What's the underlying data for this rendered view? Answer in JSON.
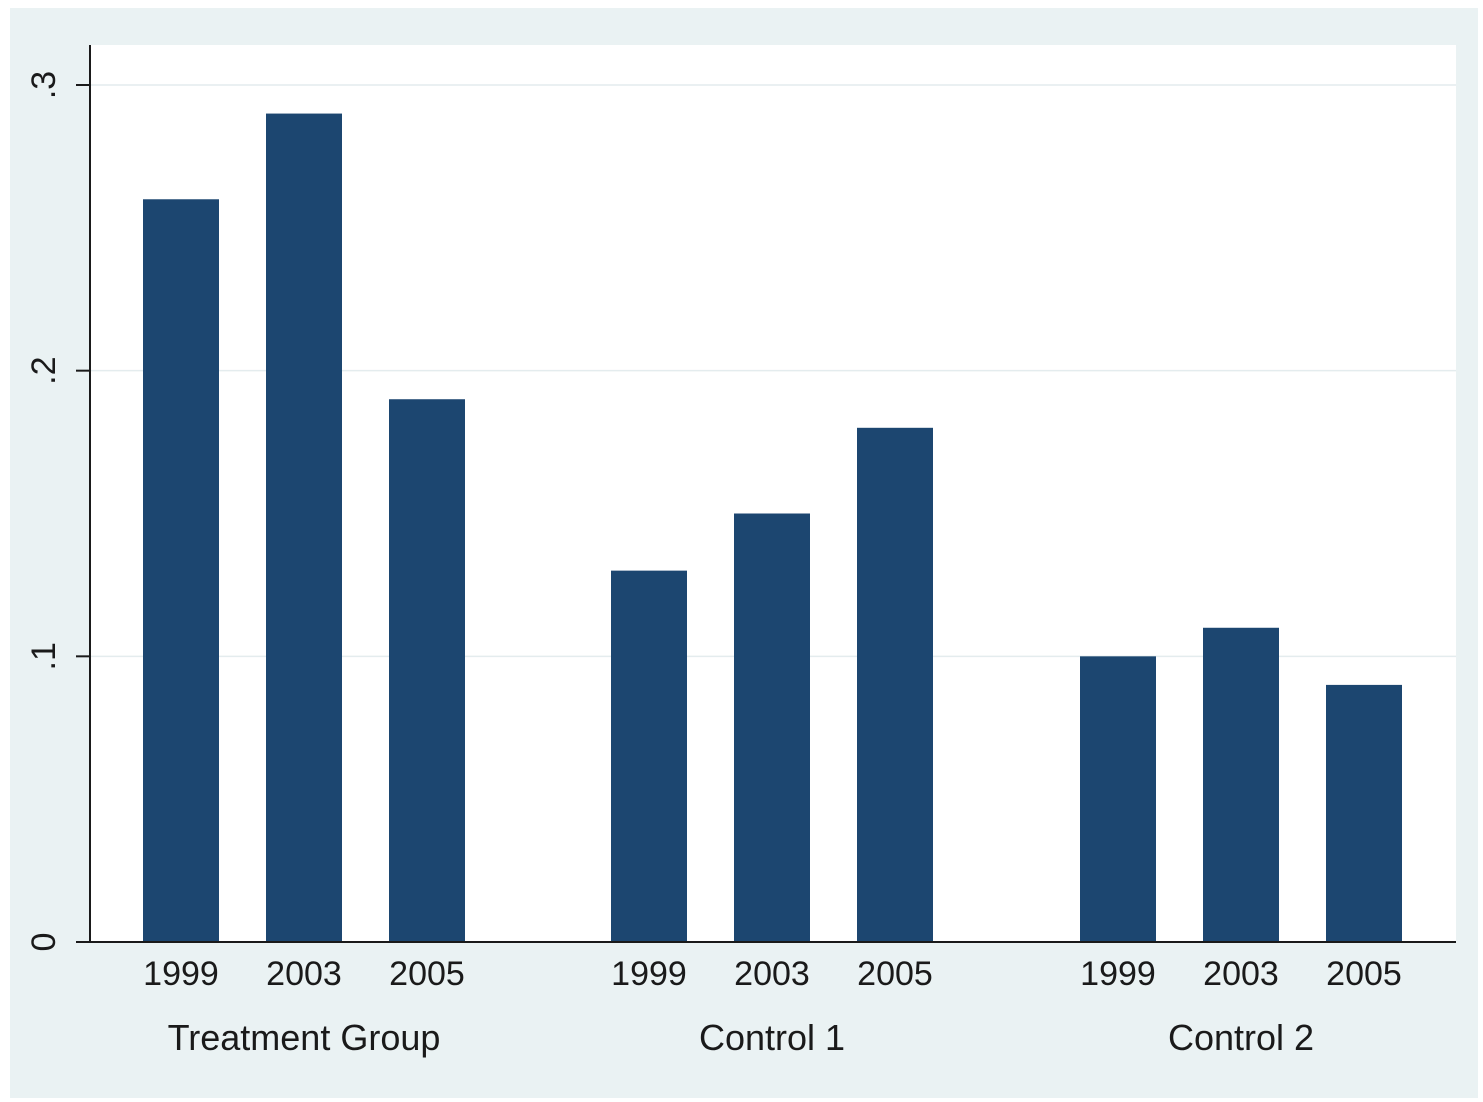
{
  "chart_data": {
    "type": "bar",
    "title": "",
    "xlabel": "",
    "ylabel": "",
    "ylim": [
      0,
      0.3
    ],
    "y_ticks": [
      {
        "value": 0,
        "label": "0"
      },
      {
        "value": 0.1,
        "label": ".1"
      },
      {
        "value": 0.2,
        "label": ".2"
      },
      {
        "value": 0.3,
        "label": ".3"
      }
    ],
    "grid": true,
    "bar_color": "#1c4670",
    "groups": [
      {
        "name": "Treatment Group",
        "categories": [
          "1999",
          "2003",
          "2005"
        ],
        "values": [
          0.26,
          0.29,
          0.19
        ]
      },
      {
        "name": "Control 1",
        "categories": [
          "1999",
          "2003",
          "2005"
        ],
        "values": [
          0.13,
          0.15,
          0.18
        ]
      },
      {
        "name": "Control 2",
        "categories": [
          "1999",
          "2003",
          "2005"
        ],
        "values": [
          0.1,
          0.11,
          0.09
        ]
      }
    ]
  }
}
